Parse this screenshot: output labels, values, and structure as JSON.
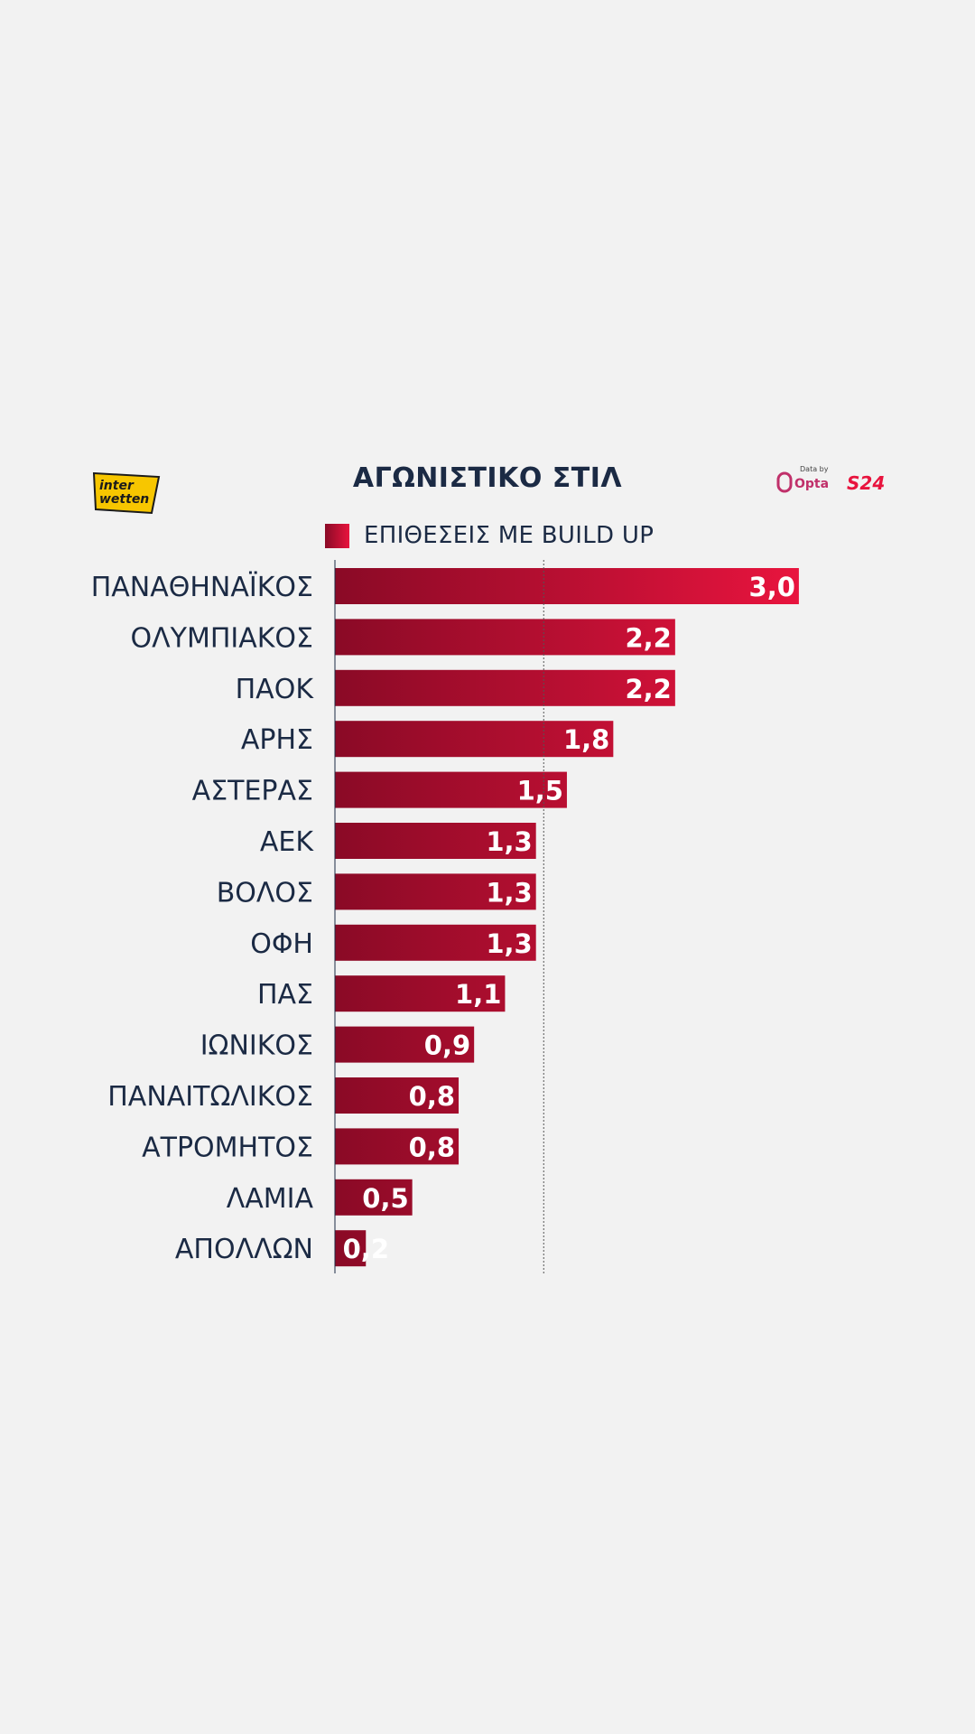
{
  "header": {
    "title": "ΑΓΩΝΙΣΤΙΚΟ ΣΤΙΛ",
    "brand_logo_line1": "inter",
    "brand_logo_line2": "wetten",
    "data_by": "Data by",
    "opta": "Opta",
    "s24": "S24"
  },
  "colors": {
    "text": "#1b2a44",
    "bar_dark": "#8a0a26",
    "bar_light": "#e8143e",
    "background": "#f2f2f2",
    "logo_yellow": "#f7c600"
  },
  "chart_data": {
    "type": "bar",
    "orientation": "horizontal",
    "title": "ΑΓΩΝΙΣΤΙΚΟ ΣΤΙΛ",
    "legend": "top",
    "series": [
      {
        "name": "ΕΠΙΘΕΣΕΙΣ ΜΕ BUILD UP",
        "values": [
          3.0,
          2.2,
          2.2,
          1.8,
          1.5,
          1.3,
          1.3,
          1.3,
          1.1,
          0.9,
          0.8,
          0.8,
          0.5,
          0.2
        ]
      }
    ],
    "categories": [
      "ΠΑΝΑΘΗΝΑΪΚΟΣ",
      "ΟΛΥΜΠΙΑΚΟΣ",
      "ΠΑΟΚ",
      "ΑΡΗΣ",
      "ΑΣΤΕΡΑΣ",
      "ΑΕΚ",
      "ΒΟΛΟΣ",
      "ΟΦΗ",
      "ΠΑΣ",
      "ΙΩΝΙΚΟΣ",
      "ΠΑΝΑΙΤΩΛΙΚΟΣ",
      "ΑΤΡΟΜΗΤΟΣ",
      "ΛΑΜΙΑ",
      "ΑΠΟΛΛΩΝ"
    ],
    "value_labels": [
      "3,0",
      "2,2",
      "2,2",
      "1,8",
      "1,5",
      "1,3",
      "1,3",
      "1,3",
      "1,1",
      "0,9",
      "0,8",
      "0,8",
      "0,5",
      "0,2"
    ],
    "reference_line": 1.35,
    "xlim": [
      0,
      3.0
    ],
    "grid": false
  }
}
